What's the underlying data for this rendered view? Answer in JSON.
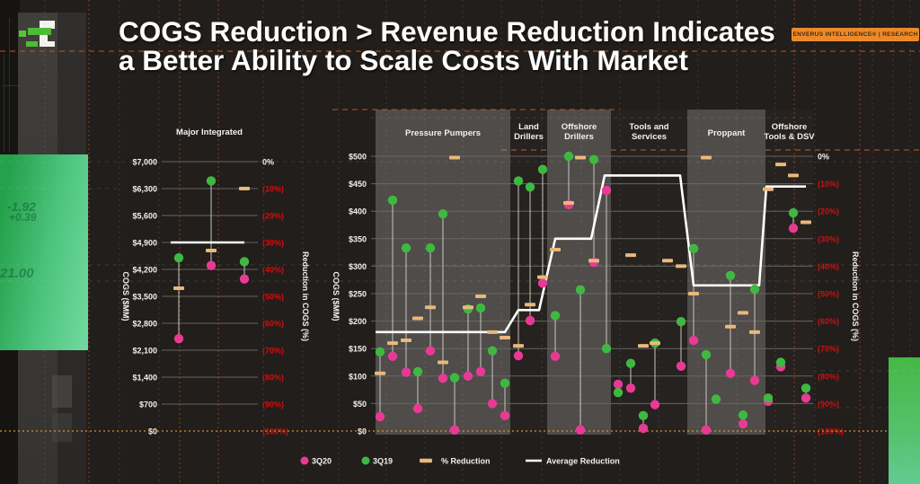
{
  "title": {
    "line1": "COGS Reduction > Revenue Reduction Indicates",
    "line2": "a Better Ability to Scale Costs With Market"
  },
  "badge": "ENVERUS INTELLIGENCE® | RESEARCH",
  "background_photo_text": {
    "v1": "-1.92",
    "v2": "+0.39",
    "v3": "21.00"
  },
  "legend": [
    {
      "label": "3Q20",
      "marker": "dot",
      "color": "#e83a94"
    },
    {
      "label": "3Q19",
      "marker": "dot",
      "color": "#3fb842"
    },
    {
      "label": "% Reduction",
      "marker": "dash",
      "color": "#eab87b"
    },
    {
      "label": "Average Reduction",
      "marker": "line",
      "color": "#ffffff"
    }
  ],
  "colors": {
    "q3_2020_dot": "#e83a94",
    "q3_2019_dot": "#3fb842",
    "pct_reduction_dash": "#eab87b",
    "average_line": "#ffffff",
    "axis_red": "#d01010",
    "band": "rgba(187,184,181,0.30)"
  },
  "chart_data": [
    {
      "type": "scatter",
      "title": "Major Integrated",
      "ylabel": "COGS ($MM)",
      "y2label": "Reduction in COGS (%)",
      "ylim": [
        0,
        7000
      ],
      "yticks": [
        "$7,000",
        "$6,300",
        "$5,600",
        "$4,900",
        "$4,200",
        "$3,500",
        "$2,800",
        "$2,100",
        "$1,400",
        "$700",
        "$0"
      ],
      "y2ticks": [
        "0%",
        "(10%)",
        "(20%)",
        "(30%)",
        "(40%)",
        "(50%)",
        "(60%)",
        "(70%)",
        "(80%)",
        "(90%)",
        "(100%)"
      ],
      "average_reduction_pct": 30,
      "points": [
        {
          "x": 199,
          "q3_2019": 4500,
          "q3_2020": 2400,
          "pct_reduction": 47
        },
        {
          "x": 235,
          "q3_2019": 6500,
          "q3_2020": 4300,
          "pct_reduction": 33
        },
        {
          "x": 272,
          "q3_2019": 4400,
          "q3_2020": 3950,
          "pct_reduction": 10
        }
      ]
    },
    {
      "type": "scatter",
      "title": "",
      "ylabel": "COGS ($MM)",
      "y2label": "Reduction in COGS (%)",
      "ylim": [
        0,
        500
      ],
      "yticks": [
        "$500",
        "$450",
        "$400",
        "$350",
        "$300",
        "$250",
        "$200",
        "$150",
        "$100",
        "$50",
        "$0"
      ],
      "y2ticks": [
        "0%",
        "(10%)",
        "(20%)",
        "(30%)",
        "(40%)",
        "(50%)",
        "(60%)",
        "(70%)",
        "(80%)",
        "(90%)",
        "(100%)"
      ],
      "groups": [
        {
          "name_lines": [
            "Pressure Pumpers"
          ],
          "shaded": true,
          "x0": 418,
          "x1": 568,
          "avg_pct": 64,
          "points": [
            {
              "x": 423,
              "q3_2019": 144,
              "q3_2020": 26,
              "pct_reduction": 79
            },
            {
              "x": 437,
              "q3_2019": 420,
              "q3_2020": 136,
              "pct_reduction": 68
            },
            {
              "x": 452,
              "q3_2019": 333,
              "q3_2020": 107,
              "pct_reduction": 67
            },
            {
              "x": 465,
              "q3_2019": 108,
              "q3_2020": 41,
              "pct_reduction": 59
            },
            {
              "x": 479,
              "q3_2019": 333,
              "q3_2020": 146,
              "pct_reduction": 55
            },
            {
              "x": 493,
              "q3_2019": 395,
              "q3_2020": 96,
              "pct_reduction": 75
            },
            {
              "x": 506,
              "q3_2019": 97,
              "q3_2020": 2,
              "pct_reduction": 0.5
            },
            {
              "x": 521,
              "q3_2019": 222,
              "q3_2020": 100,
              "pct_reduction": 55
            },
            {
              "x": 535,
              "q3_2019": 224,
              "q3_2020": 108,
              "pct_reduction": 51
            },
            {
              "x": 548,
              "q3_2019": 146,
              "q3_2020": 50,
              "pct_reduction": 64
            },
            {
              "x": 562,
              "q3_2019": 87,
              "q3_2020": 28,
              "pct_reduction": 66
            }
          ]
        },
        {
          "name_lines": [
            "Land",
            "Drillers"
          ],
          "shaded": false,
          "x0": 568,
          "x1": 609,
          "avg_pct": 56,
          "points": [
            {
              "x": 577,
              "q3_2019": 455,
              "q3_2020": 137,
              "pct_reduction": 69
            },
            {
              "x": 590,
              "q3_2019": 444,
              "q3_2020": 201,
              "pct_reduction": 54
            },
            {
              "x": 604,
              "q3_2019": 476,
              "q3_2020": 269,
              "pct_reduction": 44
            }
          ]
        },
        {
          "name_lines": [
            "Offshore",
            "Drillers"
          ],
          "shaded": true,
          "x0": 609,
          "x1": 680,
          "avg_pct": 30,
          "points": [
            {
              "x": 618,
              "q3_2019": 210,
              "q3_2020": 136,
              "pct_reduction": 34
            },
            {
              "x": 633,
              "q3_2019": 500,
              "q3_2020": 412,
              "pct_reduction": 17
            },
            {
              "x": 646,
              "q3_2019": 257,
              "q3_2020": 2,
              "pct_reduction": 0.5
            },
            {
              "x": 661,
              "q3_2019": 494,
              "q3_2020": 307,
              "pct_reduction": 38
            },
            {
              "x": 675,
              "q3_2019": 150,
              "q3_2020": 438,
              "pct_reduction": null
            }
          ]
        },
        {
          "name_lines": [
            "Tools and",
            "Services"
          ],
          "shaded": false,
          "x0": 680,
          "x1": 765,
          "avg_pct": 7,
          "points": [
            {
              "x": 688,
              "q3_2019": 70,
              "q3_2020": 85,
              "pct_reduction": null
            },
            {
              "x": 702,
              "q3_2019": 123,
              "q3_2020": 78,
              "pct_reduction": 36
            },
            {
              "x": 716,
              "q3_2019": 28,
              "q3_2020": 5,
              "pct_reduction": 69
            },
            {
              "x": 729,
              "q3_2019": 160,
              "q3_2020": 48,
              "pct_reduction": 68
            },
            {
              "x": 743,
              "q3_2019": null,
              "q3_2020": null,
              "pct_reduction": 38
            },
            {
              "x": 758,
              "q3_2019": 199,
              "q3_2020": 118,
              "pct_reduction": 40
            }
          ]
        },
        {
          "name_lines": [
            "Proppant"
          ],
          "shaded": true,
          "x0": 765,
          "x1": 852,
          "avg_pct": 47,
          "points": [
            {
              "x": 772,
              "q3_2019": 332,
              "q3_2020": 165,
              "pct_reduction": 50
            },
            {
              "x": 786,
              "q3_2019": 139,
              "q3_2020": 2,
              "pct_reduction": 0.5
            },
            {
              "x": 797,
              "q3_2019": 58,
              "q3_2020": null,
              "pct_reduction": null
            },
            {
              "x": 813,
              "q3_2019": 283,
              "q3_2020": 105,
              "pct_reduction": 62
            },
            {
              "x": 827,
              "q3_2019": 29,
              "q3_2020": 13,
              "pct_reduction": 57
            },
            {
              "x": 840,
              "q3_2019": 258,
              "q3_2020": 92,
              "pct_reduction": 64
            }
          ]
        },
        {
          "name_lines": [
            "Offshore",
            "Tools & DSV"
          ],
          "shaded": false,
          "x0": 852,
          "x1": 905,
          "avg_pct": 11,
          "points": [
            {
              "x": 855,
              "q3_2019": 60,
              "q3_2020": 54,
              "pct_reduction": 12
            },
            {
              "x": 869,
              "q3_2019": 125,
              "q3_2020": 117,
              "pct_reduction": 3
            },
            {
              "x": 883,
              "q3_2019": 397,
              "q3_2020": 369,
              "pct_reduction": 7
            },
            {
              "x": 897,
              "q3_2019": 78,
              "q3_2020": 60,
              "pct_reduction": 24
            }
          ]
        }
      ]
    }
  ]
}
